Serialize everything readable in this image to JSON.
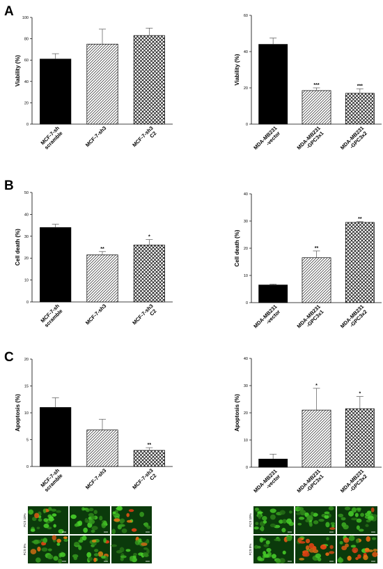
{
  "panel_letters": [
    "A",
    "B",
    "C"
  ],
  "micrograph_labels": {
    "row1": "FCS 10%",
    "row2": "FCS 0%"
  },
  "chart_data": [
    {
      "type": "bar",
      "panel": "A",
      "ylabel": "Viability (%)",
      "ylim": [
        0,
        100
      ],
      "yticks": [
        0,
        20,
        40,
        60,
        80,
        100
      ],
      "categories": [
        "MCF-7-sh scramble",
        "MCF-7-sh3",
        "MCF-7-sh3 C2"
      ],
      "category_lines": [
        [
          "MCF-7-sh",
          "scramble"
        ],
        [
          "MCF-7-sh3"
        ],
        [
          "MCF-7-sh3",
          "C2"
        ]
      ],
      "values": [
        61,
        75,
        83
      ],
      "errors": [
        5,
        14,
        7
      ],
      "significance": [
        "",
        "",
        ""
      ],
      "fills": [
        "solid",
        "hatch",
        "cross"
      ]
    },
    {
      "type": "bar",
      "panel": "A",
      "ylabel": "Viability (%)",
      "ylim": [
        0,
        60
      ],
      "yticks": [
        0,
        20,
        40,
        60
      ],
      "categories": [
        "MDA-MB231 -vector",
        "MDA-MB231 -GPC3x1",
        "MDA-MB231 -GPC3x2"
      ],
      "category_lines": [
        [
          "MDA-MB231",
          "-vector"
        ],
        [
          "MDA-MB231",
          "-GPC3x1"
        ],
        [
          "MDA-MB231",
          "-GPC3x2"
        ]
      ],
      "values": [
        44,
        18.5,
        17
      ],
      "errors": [
        3.5,
        1.5,
        2.5
      ],
      "significance": [
        "",
        "***",
        "***"
      ],
      "fills": [
        "solid",
        "hatch",
        "cross"
      ]
    },
    {
      "type": "bar",
      "panel": "B",
      "ylabel": "Cell death (%)",
      "ylim": [
        0,
        50
      ],
      "yticks": [
        0,
        10,
        20,
        30,
        40,
        50
      ],
      "categories": [
        "MCF-7-sh scramble",
        "MCF-7-sh3",
        "MCF-7-sh3 C2"
      ],
      "category_lines": [
        [
          "MCF-7-sh",
          "scramble"
        ],
        [
          "MCF-7-sh3"
        ],
        [
          "MCF-7-sh3",
          "C2"
        ]
      ],
      "values": [
        34,
        21.5,
        26
      ],
      "errors": [
        1.5,
        1.5,
        2.5
      ],
      "significance": [
        "",
        "**",
        "*"
      ],
      "fills": [
        "solid",
        "hatch",
        "cross"
      ]
    },
    {
      "type": "bar",
      "panel": "B",
      "ylabel": "Cell death (%)",
      "ylim": [
        0,
        40
      ],
      "yticks": [
        0,
        10,
        20,
        30,
        40
      ],
      "categories": [
        "MDA-MB231 -vector",
        "MDA-MB231 -GPC3x1",
        "MDA-MB231 -GPC3x2"
      ],
      "category_lines": [
        [
          "MDA-MB231",
          "-vector"
        ],
        [
          "MDA-MB231",
          "-GPC3x1"
        ],
        [
          "MDA-MB231",
          "-GPC3x2"
        ]
      ],
      "values": [
        6.5,
        16.5,
        29.5
      ],
      "errors": [
        0.3,
        2.5,
        0.3
      ],
      "significance": [
        "",
        "**",
        "**"
      ],
      "fills": [
        "solid",
        "hatch",
        "cross"
      ]
    },
    {
      "type": "bar",
      "panel": "C",
      "ylabel": "Apoptosis (%)",
      "ylim": [
        0,
        20
      ],
      "yticks": [
        0,
        5,
        10,
        15,
        20
      ],
      "categories": [
        "MCF-7-sh scramble",
        "MCF-7-sh3",
        "MCF-7-sh3 C2"
      ],
      "category_lines": [
        [
          "MCF-7-sh",
          "scramble"
        ],
        [
          "MCF-7-sh3"
        ],
        [
          "MCF-7-sh3",
          "C2"
        ]
      ],
      "values": [
        11,
        6.8,
        3
      ],
      "errors": [
        1.8,
        2,
        0.5
      ],
      "significance": [
        "",
        "",
        "**"
      ],
      "fills": [
        "solid",
        "hatch",
        "cross"
      ]
    },
    {
      "type": "bar",
      "panel": "C",
      "ylabel": "Apoptosis (%)",
      "ylim": [
        0,
        40
      ],
      "yticks": [
        0,
        10,
        20,
        30,
        40
      ],
      "categories": [
        "MDA-MB231 -vector",
        "MDA-MB231 -GPC3x1",
        "MDA-MB231 -GPC3x2"
      ],
      "category_lines": [
        [
          "MDA-MB231",
          "-vector"
        ],
        [
          "MDA-MB231",
          "-GPC3x1"
        ],
        [
          "MDA-MB231",
          "-GPC3x2"
        ]
      ],
      "values": [
        3,
        21,
        21.5
      ],
      "errors": [
        1.8,
        8,
        4.5
      ],
      "significance": [
        "",
        "*",
        "*"
      ],
      "fills": [
        "solid",
        "hatch",
        "cross"
      ]
    }
  ]
}
